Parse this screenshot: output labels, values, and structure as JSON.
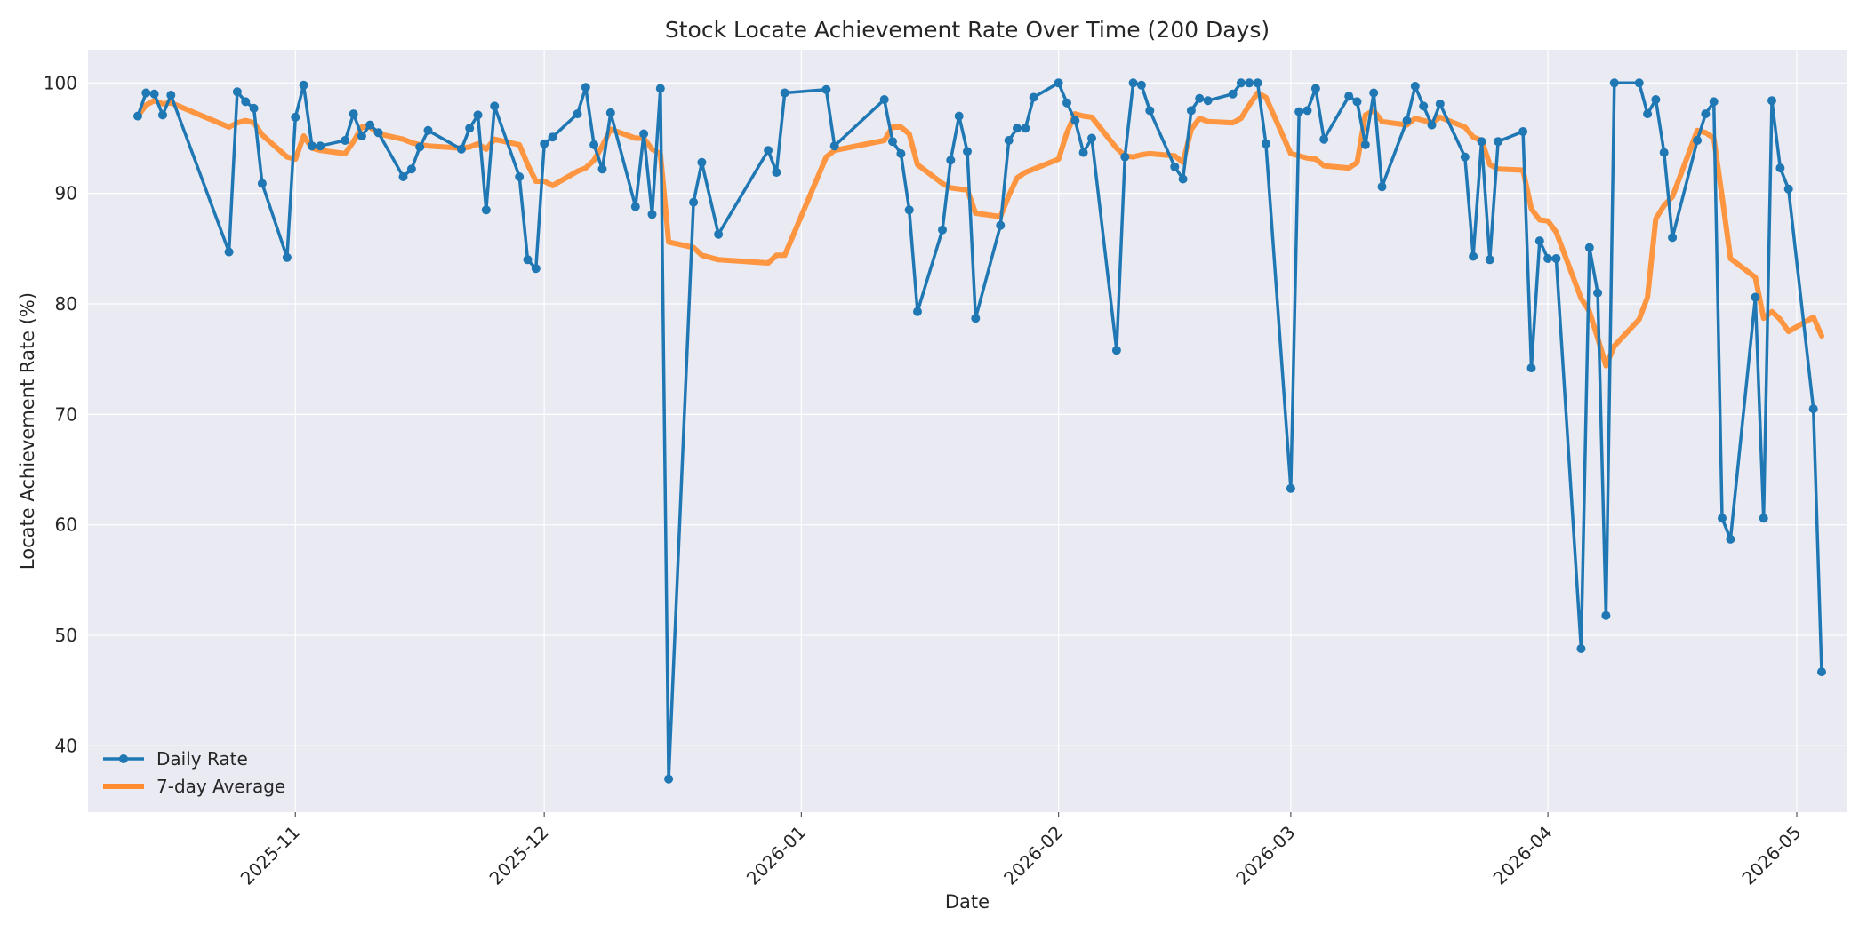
{
  "chart_data": {
    "type": "line",
    "title": "Stock Locate Achievement Rate Over Time (200 Days)",
    "xlabel": "Date",
    "ylabel": "Locate Achievement Rate (%)",
    "xlim": [
      "2025-10-07",
      "2026-05-07"
    ],
    "ylim": [
      34,
      103
    ],
    "x_ticks": [
      "2025-11",
      "2025-12",
      "2026-01",
      "2026-02",
      "2026-03",
      "2026-04",
      "2026-05"
    ],
    "y_ticks": [
      40,
      50,
      60,
      70,
      80,
      90,
      100
    ],
    "grid": true,
    "legend_position": "bottom-left",
    "series": [
      {
        "name": "Daily Rate",
        "color": "#1f77b4",
        "style": "line-with-markers",
        "points": [
          [
            "2025-10-13",
            97
          ],
          [
            "2025-10-14",
            99.1
          ],
          [
            "2025-10-15",
            99
          ],
          [
            "2025-10-16",
            97.1
          ],
          [
            "2025-10-17",
            98.9
          ],
          [
            "2025-10-24",
            84.7
          ],
          [
            "2025-10-25",
            99.2
          ],
          [
            "2025-10-26",
            98.3
          ],
          [
            "2025-10-27",
            97.7
          ],
          [
            "2025-10-28",
            90.9
          ],
          [
            "2025-10-31",
            84.2
          ],
          [
            "2025-11-01",
            96.9
          ],
          [
            "2025-11-02",
            99.8
          ],
          [
            "2025-11-03",
            94.3
          ],
          [
            "2025-11-04",
            94.3
          ],
          [
            "2025-11-07",
            94.8
          ],
          [
            "2025-11-08",
            97.2
          ],
          [
            "2025-11-09",
            95.2
          ],
          [
            "2025-11-10",
            96.2
          ],
          [
            "2025-11-11",
            95.5
          ],
          [
            "2025-11-14",
            91.5
          ],
          [
            "2025-11-15",
            92.2
          ],
          [
            "2025-11-16",
            94.2
          ],
          [
            "2025-11-17",
            95.7
          ],
          [
            "2025-11-21",
            94
          ],
          [
            "2025-11-22",
            95.9
          ],
          [
            "2025-11-23",
            97.1
          ],
          [
            "2025-11-24",
            88.5
          ],
          [
            "2025-11-25",
            97.9
          ],
          [
            "2025-11-28",
            91.5
          ],
          [
            "2025-11-29",
            84
          ],
          [
            "2025-11-30",
            83.2
          ],
          [
            "2025-12-01",
            94.5
          ],
          [
            "2025-12-02",
            95.1
          ],
          [
            "2025-12-05",
            97.2
          ],
          [
            "2025-12-06",
            99.6
          ],
          [
            "2025-12-07",
            94.4
          ],
          [
            "2025-12-08",
            92.2
          ],
          [
            "2025-12-09",
            97.3
          ],
          [
            "2025-12-12",
            88.8
          ],
          [
            "2025-12-13",
            95.4
          ],
          [
            "2025-12-14",
            88.1
          ],
          [
            "2025-12-15",
            99.5
          ],
          [
            "2025-12-16",
            37
          ],
          [
            "2025-12-19",
            89.2
          ],
          [
            "2025-12-20",
            92.8
          ],
          [
            "2025-12-22",
            86.3
          ],
          [
            "2025-12-28",
            93.9
          ],
          [
            "2025-12-29",
            91.9
          ],
          [
            "2025-12-30",
            99.1
          ],
          [
            "2026-01-04",
            99.4
          ],
          [
            "2026-01-05",
            94.3
          ],
          [
            "2026-01-11",
            98.5
          ],
          [
            "2026-01-12",
            94.7
          ],
          [
            "2026-01-13",
            93.6
          ],
          [
            "2026-01-14",
            88.5
          ],
          [
            "2026-01-15",
            79.3
          ],
          [
            "2026-01-18",
            86.7
          ],
          [
            "2026-01-19",
            93
          ],
          [
            "2026-01-20",
            97
          ],
          [
            "2026-01-21",
            93.8
          ],
          [
            "2026-01-22",
            78.7
          ],
          [
            "2026-01-25",
            87.1
          ],
          [
            "2026-01-26",
            94.8
          ],
          [
            "2026-01-27",
            95.9
          ],
          [
            "2026-01-28",
            95.9
          ],
          [
            "2026-01-29",
            98.7
          ],
          [
            "2026-02-01",
            100
          ],
          [
            "2026-02-02",
            98.2
          ],
          [
            "2026-02-03",
            96.6
          ],
          [
            "2026-02-04",
            93.7
          ],
          [
            "2026-02-05",
            95
          ],
          [
            "2026-02-08",
            75.8
          ],
          [
            "2026-02-09",
            93.3
          ],
          [
            "2026-02-10",
            100
          ],
          [
            "2026-02-11",
            99.8
          ],
          [
            "2026-02-12",
            97.5
          ],
          [
            "2026-02-15",
            92.4
          ],
          [
            "2026-02-16",
            91.3
          ],
          [
            "2026-02-17",
            97.5
          ],
          [
            "2026-02-18",
            98.6
          ],
          [
            "2026-02-19",
            98.4
          ],
          [
            "2026-02-22",
            99
          ],
          [
            "2026-02-23",
            100
          ],
          [
            "2026-02-24",
            100
          ],
          [
            "2026-02-25",
            100
          ],
          [
            "2026-02-26",
            94.5
          ],
          [
            "2026-03-01",
            63.3
          ],
          [
            "2026-03-02",
            97.4
          ],
          [
            "2026-03-03",
            97.5
          ],
          [
            "2026-03-04",
            99.5
          ],
          [
            "2026-03-05",
            94.9
          ],
          [
            "2026-03-08",
            98.8
          ],
          [
            "2026-03-09",
            98.3
          ],
          [
            "2026-03-10",
            94.4
          ],
          [
            "2026-03-11",
            99.1
          ],
          [
            "2026-03-12",
            90.6
          ],
          [
            "2026-03-15",
            96.6
          ],
          [
            "2026-03-16",
            99.7
          ],
          [
            "2026-03-17",
            97.9
          ],
          [
            "2026-03-18",
            96.2
          ],
          [
            "2026-03-19",
            98.1
          ],
          [
            "2026-03-22",
            93.3
          ],
          [
            "2026-03-23",
            84.3
          ],
          [
            "2026-03-24",
            94.7
          ],
          [
            "2026-03-25",
            84
          ],
          [
            "2026-03-26",
            94.7
          ],
          [
            "2026-03-29",
            95.6
          ],
          [
            "2026-03-30",
            74.2
          ],
          [
            "2026-03-31",
            85.7
          ],
          [
            "2026-04-01",
            84.1
          ],
          [
            "2026-04-02",
            84.1
          ],
          [
            "2026-04-05",
            48.8
          ],
          [
            "2026-04-06",
            85.1
          ],
          [
            "2026-04-07",
            81
          ],
          [
            "2026-04-08",
            51.8
          ],
          [
            "2026-04-09",
            100
          ],
          [
            "2026-04-12",
            100
          ],
          [
            "2026-04-13",
            97.2
          ],
          [
            "2026-04-14",
            98.5
          ],
          [
            "2026-04-15",
            93.7
          ],
          [
            "2026-04-16",
            86
          ],
          [
            "2026-04-19",
            94.8
          ],
          [
            "2026-04-20",
            97.2
          ],
          [
            "2026-04-21",
            98.3
          ],
          [
            "2026-04-22",
            60.6
          ],
          [
            "2026-04-23",
            58.7
          ],
          [
            "2026-04-26",
            80.6
          ],
          [
            "2026-04-27",
            60.6
          ],
          [
            "2026-04-28",
            98.4
          ],
          [
            "2026-04-29",
            92.3
          ],
          [
            "2026-04-30",
            90.4
          ],
          [
            "2026-05-03",
            70.5
          ],
          [
            "2026-05-04",
            46.7
          ]
        ]
      },
      {
        "name": "7-day Average",
        "color": "#ff8c2e",
        "style": "line",
        "points": [
          [
            "2025-10-13",
            97
          ],
          [
            "2025-10-14",
            98
          ],
          [
            "2025-10-15",
            98.4
          ],
          [
            "2025-10-16",
            98.1
          ],
          [
            "2025-10-17",
            98.2
          ],
          [
            "2025-10-24",
            96
          ],
          [
            "2025-10-25",
            96.4
          ],
          [
            "2025-10-26",
            96.6
          ],
          [
            "2025-10-27",
            96.4
          ],
          [
            "2025-10-28",
            95.3
          ],
          [
            "2025-10-31",
            93.3
          ],
          [
            "2025-11-01",
            93.1
          ],
          [
            "2025-11-02",
            95.2
          ],
          [
            "2025-11-03",
            94.1
          ],
          [
            "2025-11-04",
            93.9
          ],
          [
            "2025-11-07",
            93.6
          ],
          [
            "2025-11-08",
            94.7
          ],
          [
            "2025-11-09",
            96
          ],
          [
            "2025-11-10",
            96
          ],
          [
            "2025-11-11",
            95.4
          ],
          [
            "2025-11-14",
            94.9
          ],
          [
            "2025-11-15",
            94.6
          ],
          [
            "2025-11-16",
            94.4
          ],
          [
            "2025-11-17",
            94.3
          ],
          [
            "2025-11-21",
            94.1
          ],
          [
            "2025-11-22",
            94.2
          ],
          [
            "2025-11-23",
            94.5
          ],
          [
            "2025-11-24",
            94
          ],
          [
            "2025-11-25",
            94.9
          ],
          [
            "2025-11-28",
            94.4
          ],
          [
            "2025-11-29",
            92.6
          ],
          [
            "2025-11-30",
            91.1
          ],
          [
            "2025-12-01",
            91.1
          ],
          [
            "2025-12-02",
            90.7
          ],
          [
            "2025-12-05",
            92
          ],
          [
            "2025-12-06",
            92.3
          ],
          [
            "2025-12-07",
            93
          ],
          [
            "2025-12-08",
            94.3
          ],
          [
            "2025-12-09",
            95.8
          ],
          [
            "2025-12-12",
            95
          ],
          [
            "2025-12-13",
            95
          ],
          [
            "2025-12-14",
            94
          ],
          [
            "2025-12-15",
            93.6
          ],
          [
            "2025-12-16",
            85.6
          ],
          [
            "2025-12-19",
            85.1
          ],
          [
            "2025-12-20",
            84.4
          ],
          [
            "2025-12-22",
            84
          ],
          [
            "2025-12-28",
            83.7
          ],
          [
            "2025-12-29",
            84.4
          ],
          [
            "2025-12-30",
            84.4
          ],
          [
            "2026-01-04",
            93.3
          ],
          [
            "2026-01-05",
            93.9
          ],
          [
            "2026-01-11",
            94.8
          ],
          [
            "2026-01-12",
            96
          ],
          [
            "2026-01-13",
            96
          ],
          [
            "2026-01-14",
            95.4
          ],
          [
            "2026-01-15",
            92.6
          ],
          [
            "2026-01-18",
            90.9
          ],
          [
            "2026-01-19",
            90.5
          ],
          [
            "2026-01-20",
            90.4
          ],
          [
            "2026-01-21",
            90.3
          ],
          [
            "2026-01-22",
            88.2
          ],
          [
            "2026-01-25",
            87.9
          ],
          [
            "2026-01-26",
            89.8
          ],
          [
            "2026-01-27",
            91.4
          ],
          [
            "2026-01-28",
            91.9
          ],
          [
            "2026-01-29",
            92.2
          ],
          [
            "2026-02-01",
            93.1
          ],
          [
            "2026-02-02",
            95.5
          ],
          [
            "2026-02-03",
            97.2
          ],
          [
            "2026-02-04",
            97
          ],
          [
            "2026-02-05",
            96.9
          ],
          [
            "2026-02-08",
            94.1
          ],
          [
            "2026-02-09",
            93.4
          ],
          [
            "2026-02-10",
            93.3
          ],
          [
            "2026-02-11",
            93.5
          ],
          [
            "2026-02-12",
            93.6
          ],
          [
            "2026-02-15",
            93.4
          ],
          [
            "2026-02-16",
            92.8
          ],
          [
            "2026-02-17",
            95.8
          ],
          [
            "2026-02-18",
            96.8
          ],
          [
            "2026-02-19",
            96.5
          ],
          [
            "2026-02-22",
            96.4
          ],
          [
            "2026-02-23",
            96.8
          ],
          [
            "2026-02-24",
            98
          ],
          [
            "2026-02-25",
            99.1
          ],
          [
            "2026-02-26",
            98.7
          ],
          [
            "2026-03-01",
            93.6
          ],
          [
            "2026-03-02",
            93.4
          ],
          [
            "2026-03-03",
            93.2
          ],
          [
            "2026-03-04",
            93.1
          ],
          [
            "2026-03-05",
            92.5
          ],
          [
            "2026-03-08",
            92.3
          ],
          [
            "2026-03-09",
            92.8
          ],
          [
            "2026-03-10",
            97.1
          ],
          [
            "2026-03-11",
            97.5
          ],
          [
            "2026-03-12",
            96.5
          ],
          [
            "2026-03-15",
            96.2
          ],
          [
            "2026-03-16",
            96.8
          ],
          [
            "2026-03-17",
            96.6
          ],
          [
            "2026-03-18",
            96.4
          ],
          [
            "2026-03-19",
            96.9
          ],
          [
            "2026-03-22",
            96
          ],
          [
            "2026-03-23",
            95.1
          ],
          [
            "2026-03-24",
            94.8
          ],
          [
            "2026-03-25",
            92.6
          ],
          [
            "2026-03-26",
            92.2
          ],
          [
            "2026-03-29",
            92.1
          ],
          [
            "2026-03-30",
            88.6
          ],
          [
            "2026-03-31",
            87.6
          ],
          [
            "2026-04-01",
            87.5
          ],
          [
            "2026-04-02",
            86.5
          ],
          [
            "2026-04-05",
            80.5
          ],
          [
            "2026-04-06",
            79.3
          ],
          [
            "2026-04-07",
            76.9
          ],
          [
            "2026-04-08",
            74.4
          ],
          [
            "2026-04-09",
            76.2
          ],
          [
            "2026-04-12",
            78.6
          ],
          [
            "2026-04-13",
            80.6
          ],
          [
            "2026-04-14",
            87.7
          ],
          [
            "2026-04-15",
            88.9
          ],
          [
            "2026-04-16",
            89.7
          ],
          [
            "2026-04-19",
            95.7
          ],
          [
            "2026-04-20",
            95.5
          ],
          [
            "2026-04-21",
            95
          ],
          [
            "2026-04-22",
            89.7
          ],
          [
            "2026-04-23",
            84.1
          ],
          [
            "2026-04-26",
            82.4
          ],
          [
            "2026-04-27",
            78.7
          ],
          [
            "2026-04-28",
            79.3
          ],
          [
            "2026-04-29",
            78.6
          ],
          [
            "2026-04-30",
            77.5
          ],
          [
            "2026-05-03",
            78.8
          ],
          [
            "2026-05-04",
            77.1
          ]
        ]
      }
    ]
  }
}
